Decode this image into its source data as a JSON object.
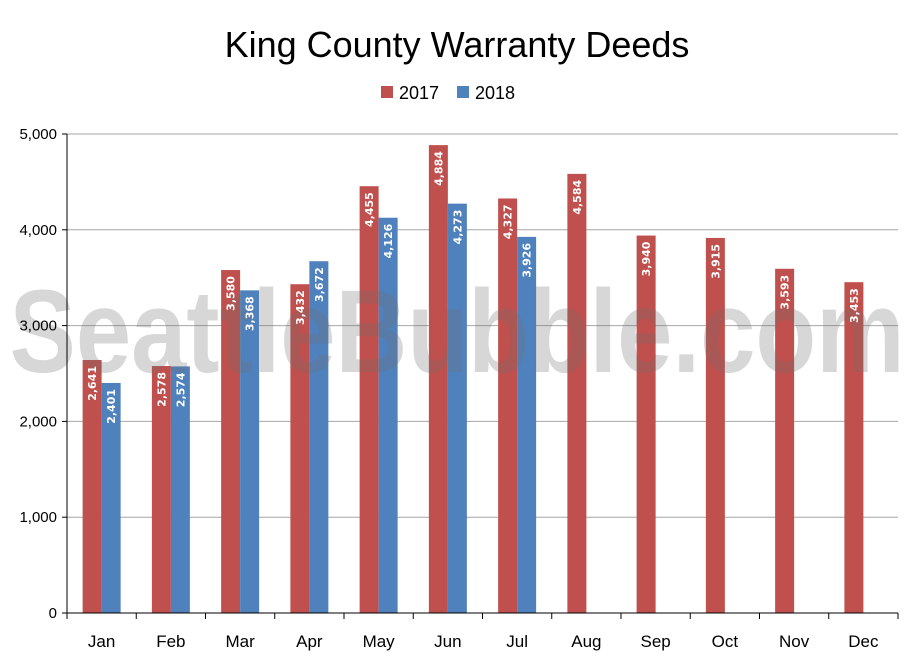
{
  "chart_data": {
    "type": "bar",
    "title": "King County Warranty Deeds",
    "watermark": "SeattleBubble.com",
    "categories": [
      "Jan",
      "Feb",
      "Mar",
      "Apr",
      "May",
      "Jun",
      "Jul",
      "Aug",
      "Sep",
      "Oct",
      "Nov",
      "Dec"
    ],
    "series": [
      {
        "name": "2017",
        "color": "#c0504d",
        "values": [
          2641,
          2578,
          3580,
          3432,
          4455,
          4884,
          4327,
          4584,
          3940,
          3915,
          3593,
          3453
        ],
        "labels": [
          "2,641",
          "2,578",
          "3,580",
          "3,432",
          "4,455",
          "4,884",
          "4,327",
          "4,584",
          "3,940",
          "3,915",
          "3,593",
          "3,453"
        ]
      },
      {
        "name": "2018",
        "color": "#4f81bd",
        "values": [
          2401,
          2574,
          3368,
          3672,
          4126,
          4273,
          3926,
          null,
          null,
          null,
          null,
          null
        ],
        "labels": [
          "2,401",
          "2,574",
          "3,368",
          "3,672",
          "4,126",
          "4,273",
          "3,926",
          null,
          null,
          null,
          null,
          null
        ]
      }
    ],
    "ylim": [
      0,
      5000
    ],
    "yticks": [
      0,
      1000,
      2000,
      3000,
      4000,
      5000
    ],
    "ytick_labels": [
      "0",
      "1,000",
      "2,000",
      "3,000",
      "4,000",
      "5,000"
    ],
    "xlabel": "",
    "ylabel": "",
    "grid": true,
    "legend_position": "top-center",
    "gridline_color": "#a6a6a6"
  }
}
